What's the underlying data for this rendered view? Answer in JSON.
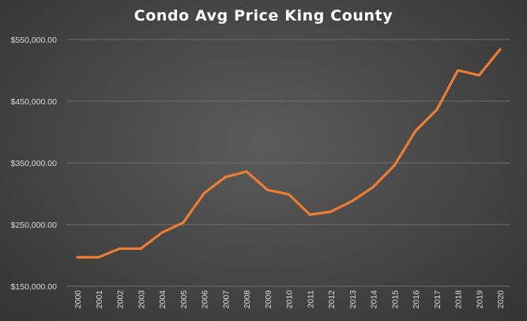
{
  "chart_data": {
    "type": "line",
    "title": "Condo Avg Price King County",
    "xlabel": "",
    "ylabel": "",
    "categories": [
      "2000",
      "2001",
      "2002",
      "2003",
      "2004",
      "2005",
      "2006",
      "2007",
      "2008",
      "2009",
      "2010",
      "2011",
      "2012",
      "2013",
      "2014",
      "2015",
      "2016",
      "2017",
      "2018",
      "2019",
      "2020"
    ],
    "series": [
      {
        "values": [
          197000,
          197000,
          211000,
          211000,
          237000,
          253000,
          301000,
          327000,
          336000,
          306000,
          299000,
          266000,
          271000,
          288000,
          311000,
          346000,
          402000,
          436000,
          500000,
          492000,
          534000
        ],
        "color": "#ed7d31"
      }
    ],
    "ylim": [
      150000,
      550000
    ],
    "yticks": [
      150000,
      250000,
      350000,
      450000,
      550000
    ],
    "ytick_labels": [
      "$150,000.00",
      "$250,000.00",
      "$350,000.00",
      "$450,000.00",
      "$550,000.00"
    ],
    "grid": true,
    "legend": "none"
  }
}
